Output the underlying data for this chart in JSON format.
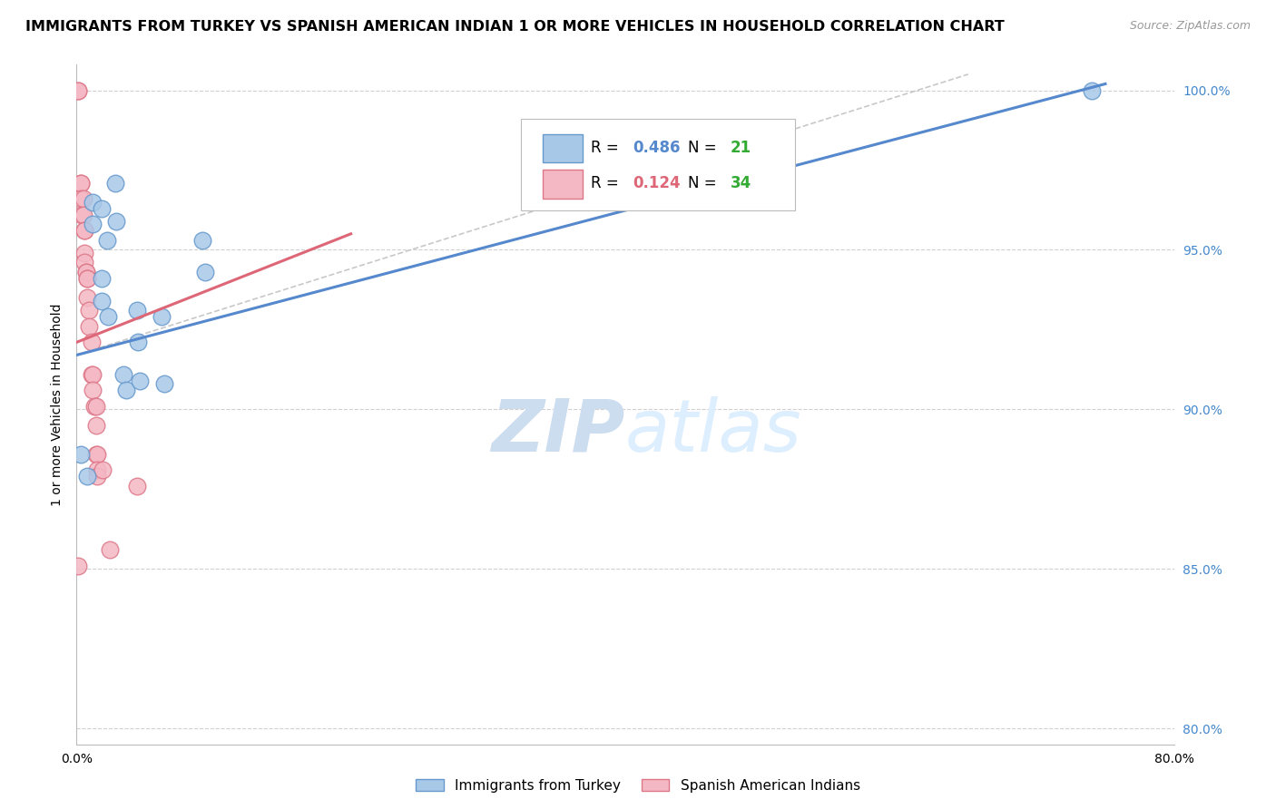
{
  "title": "IMMIGRANTS FROM TURKEY VS SPANISH AMERICAN INDIAN 1 OR MORE VEHICLES IN HOUSEHOLD CORRELATION CHART",
  "source": "Source: ZipAtlas.com",
  "ylabel": "1 or more Vehicles in Household",
  "xlim": [
    0.0,
    0.8
  ],
  "ylim": [
    0.795,
    1.008
  ],
  "xticks": [
    0.0,
    0.1,
    0.2,
    0.3,
    0.4,
    0.5,
    0.6,
    0.7,
    0.8
  ],
  "xticklabels": [
    "0.0%",
    "",
    "",
    "",
    "",
    "",
    "",
    "",
    "80.0%"
  ],
  "yticks": [
    0.8,
    0.85,
    0.9,
    0.95,
    1.0
  ],
  "yticklabels": [
    "80.0%",
    "85.0%",
    "90.0%",
    "95.0%",
    "100.0%"
  ],
  "blue_R": 0.486,
  "blue_N": 21,
  "pink_R": 0.124,
  "pink_N": 34,
  "blue_label": "Immigrants from Turkey",
  "pink_label": "Spanish American Indians",
  "blue_color": "#a8c8e8",
  "pink_color": "#f4b8c4",
  "blue_edge": "#6699cc",
  "pink_edge": "#dd7788",
  "blue_dots_x": [
    0.003,
    0.008,
    0.012,
    0.012,
    0.018,
    0.018,
    0.018,
    0.022,
    0.023,
    0.028,
    0.029,
    0.034,
    0.036,
    0.044,
    0.045,
    0.046,
    0.062,
    0.064,
    0.092,
    0.094,
    0.74
  ],
  "blue_dots_y": [
    0.886,
    0.879,
    0.965,
    0.958,
    0.963,
    0.941,
    0.934,
    0.953,
    0.929,
    0.971,
    0.959,
    0.911,
    0.906,
    0.931,
    0.921,
    0.909,
    0.929,
    0.908,
    0.953,
    0.943,
    1.0
  ],
  "pink_dots_x": [
    0.001,
    0.001,
    0.003,
    0.003,
    0.003,
    0.004,
    0.005,
    0.005,
    0.006,
    0.006,
    0.006,
    0.006,
    0.007,
    0.007,
    0.008,
    0.008,
    0.008,
    0.009,
    0.009,
    0.011,
    0.011,
    0.012,
    0.012,
    0.013,
    0.014,
    0.014,
    0.014,
    0.015,
    0.015,
    0.015,
    0.019,
    0.024,
    0.044,
    0.001
  ],
  "pink_dots_y": [
    1.0,
    1.0,
    0.971,
    0.971,
    0.966,
    0.961,
    0.966,
    0.961,
    0.956,
    0.956,
    0.949,
    0.946,
    0.943,
    0.943,
    0.941,
    0.941,
    0.935,
    0.931,
    0.926,
    0.921,
    0.911,
    0.911,
    0.906,
    0.901,
    0.901,
    0.895,
    0.886,
    0.886,
    0.881,
    0.879,
    0.881,
    0.856,
    0.876,
    0.851
  ],
  "blue_trend_x": [
    0.0,
    0.75
  ],
  "blue_trend_y": [
    0.917,
    1.002
  ],
  "pink_trend_x": [
    0.0,
    0.2
  ],
  "pink_trend_y": [
    0.921,
    0.955
  ],
  "ref_line_x": [
    0.0,
    0.65
  ],
  "ref_line_y": [
    0.917,
    1.005
  ],
  "watermark_zip": "ZIP",
  "watermark_atlas": "atlas",
  "watermark_color": "#ddeeff",
  "background_color": "#ffffff",
  "grid_color": "#d0d0d0",
  "ref_line_color": "#c8c8c8",
  "blue_line_color": "#5588cc",
  "pink_line_color": "#dd6677",
  "title_fontsize": 11.5,
  "axis_label_fontsize": 10,
  "tick_fontsize": 10,
  "source_fontsize": 9
}
